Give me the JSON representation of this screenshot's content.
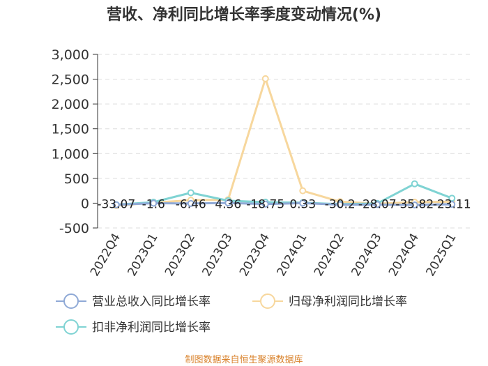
{
  "chart_data": {
    "type": "line",
    "title": "营收、净利同比增长率季度变动情况(%)",
    "categories": [
      "2022Q4",
      "2023Q1",
      "2023Q2",
      "2023Q3",
      "2023Q4",
      "2024Q1",
      "2024Q2",
      "2024Q3",
      "2024Q4",
      "2025Q1"
    ],
    "yticks": [
      "3,000",
      "2,500",
      "2,000",
      "1,500",
      "1,000",
      "500",
      "0",
      "-500"
    ],
    "ylim": [
      -500,
      3000
    ],
    "grid": true,
    "legend_position": "bottom",
    "series": [
      {
        "name": "营业总收入同比增长率",
        "color": "#8fa9d6",
        "values": [
          -33.07,
          -1.6,
          -6.46,
          4.36,
          -18.75,
          0.33,
          -30.2,
          -28.07,
          -35.82,
          -23.11
        ],
        "labels": [
          "-33.07",
          "-1.6",
          "-6.46",
          "4.36",
          "-18.75",
          "0.33",
          "-30.2",
          "-28.07",
          "-35.82",
          "-23.11"
        ]
      },
      {
        "name": "归母净利润同比增长率",
        "color": "#f7d79d",
        "values": [
          -50,
          10,
          60,
          70,
          2510,
          250,
          30,
          -10,
          20,
          30
        ]
      },
      {
        "name": "扣非净利润同比增长率",
        "color": "#7fd3d3",
        "values": [
          -30,
          20,
          210,
          50,
          20,
          10,
          -20,
          -5,
          390,
          100
        ]
      }
    ]
  },
  "source": "制图数据来自恒生聚源数据库"
}
